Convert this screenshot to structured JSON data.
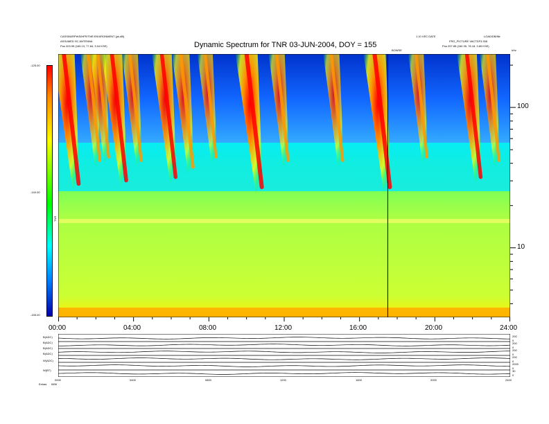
{
  "header": {
    "left_line1": "CASSINI/RPWS/HFR/TNR ENVIRONMENT (pk,dB)",
    "left_line2": "ASSUMED SC ANTENNA",
    "left_pos_label": "Pos",
    "left_pos_value": "203.99 (169.13, 77.84, 3.04 KSE)",
    "right_line1": "1.10 VEC DATE",
    "right_line1b": "LOAD/DB/file",
    "right_line2": "FRG_PICTURE VACTDF3.306",
    "right_pos_label": "Pos",
    "right_pos_value": "297.85 (160.35, 78.18, 3.89 KSE)",
    "marker_label": "BOWSE"
  },
  "chart_data": {
    "type": "heatmap",
    "title": "Dynamic Spectrum for TNR 03-JUN-2004, DOY = 155",
    "colorbar": {
      "label": "TNR",
      "ticks": [
        "-125.00",
        "-140.00",
        "-155.00"
      ],
      "range": [
        -155,
        -125
      ],
      "colors": [
        "#0000aa",
        "#00ffff",
        "#00ff00",
        "#ffff00",
        "#ff0000"
      ]
    },
    "y_axis": {
      "unit": "kHz",
      "scale": "log",
      "range": [
        3.2,
        240
      ],
      "tick_labels": [
        "100",
        "10"
      ],
      "tick_values": [
        100,
        10
      ]
    },
    "x_axis": {
      "tick_labels": [
        "00:00",
        "04:00",
        "08:00",
        "12:00",
        "16:00",
        "20:00",
        "24:00"
      ],
      "range_hours": [
        0,
        24
      ]
    },
    "event_marker_hour": 17.5,
    "bursts": [
      {
        "hour": 0.3,
        "intensity": 0.95
      },
      {
        "hour": 1.6,
        "intensity": 0.6
      },
      {
        "hour": 2.1,
        "intensity": 0.55
      },
      {
        "hour": 2.85,
        "intensity": 0.9
      },
      {
        "hour": 3.8,
        "intensity": 0.6
      },
      {
        "hour": 5.5,
        "intensity": 0.85
      },
      {
        "hour": 6.5,
        "intensity": 0.7
      },
      {
        "hour": 7.8,
        "intensity": 0.55
      },
      {
        "hour": 10.0,
        "intensity": 1.0
      },
      {
        "hour": 11.6,
        "intensity": 0.6
      },
      {
        "hour": 14.5,
        "intensity": 0.6
      },
      {
        "hour": 16.8,
        "intensity": 1.0
      },
      {
        "hour": 19.0,
        "intensity": 0.55
      },
      {
        "hour": 21.7,
        "intensity": 0.85
      },
      {
        "hour": 22.8,
        "intensity": 0.6
      }
    ]
  },
  "panels": [
    {
      "label": "B(ADC)",
      "scale_top": "200",
      "scale_bottom": "0"
    },
    {
      "label": "B(ADC)",
      "scale_top": "200",
      "scale_bottom": "0"
    },
    {
      "label": "B(ADC)",
      "scale_top": "200",
      "scale_bottom": "0"
    },
    {
      "label": "B(ADC)",
      "scale_top": "200",
      "scale_bottom": "0"
    },
    {
      "label": "W(ADC)",
      "scale_top": "2000",
      "scale_bottom": "0"
    },
    {
      "label": "W(BT)",
      "scale_top": "30",
      "scale_bottom": "0"
    }
  ],
  "panel_ticks": [
    "0000",
    "0400",
    "0800",
    "1200",
    "1600",
    "2000",
    "2400"
  ],
  "footer": {
    "left1": "Extras",
    "left2": "IMW"
  }
}
